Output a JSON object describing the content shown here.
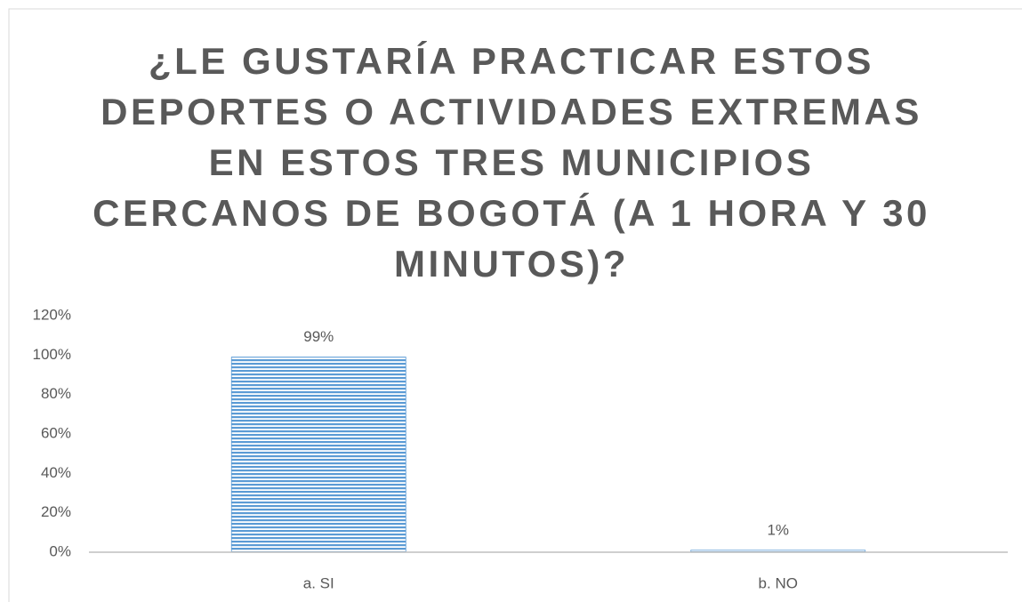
{
  "chart_data": {
    "type": "bar",
    "title": "¿LE GUSTARÍA PRACTICAR ESTOS DEPORTES O ACTIVIDADES EXTREMAS EN ESTOS TRES MUNICIPIOS CERCANOS DE BOGOTÁ (A 1 HORA Y 30 MINUTOS)?",
    "categories": [
      "a. SI",
      "b. NO"
    ],
    "values": [
      99,
      1
    ],
    "value_labels": [
      "99%",
      "1%"
    ],
    "color": "#5b9bd5",
    "ylim": [
      0,
      120
    ],
    "yticks": [
      {
        "value": 0,
        "label": "0%"
      },
      {
        "value": 20,
        "label": "20%"
      },
      {
        "value": 40,
        "label": "40%"
      },
      {
        "value": 60,
        "label": "60%"
      },
      {
        "value": 80,
        "label": "80%"
      },
      {
        "value": 100,
        "label": "100%"
      },
      {
        "value": 120,
        "label": "120%"
      }
    ],
    "grid": false
  }
}
